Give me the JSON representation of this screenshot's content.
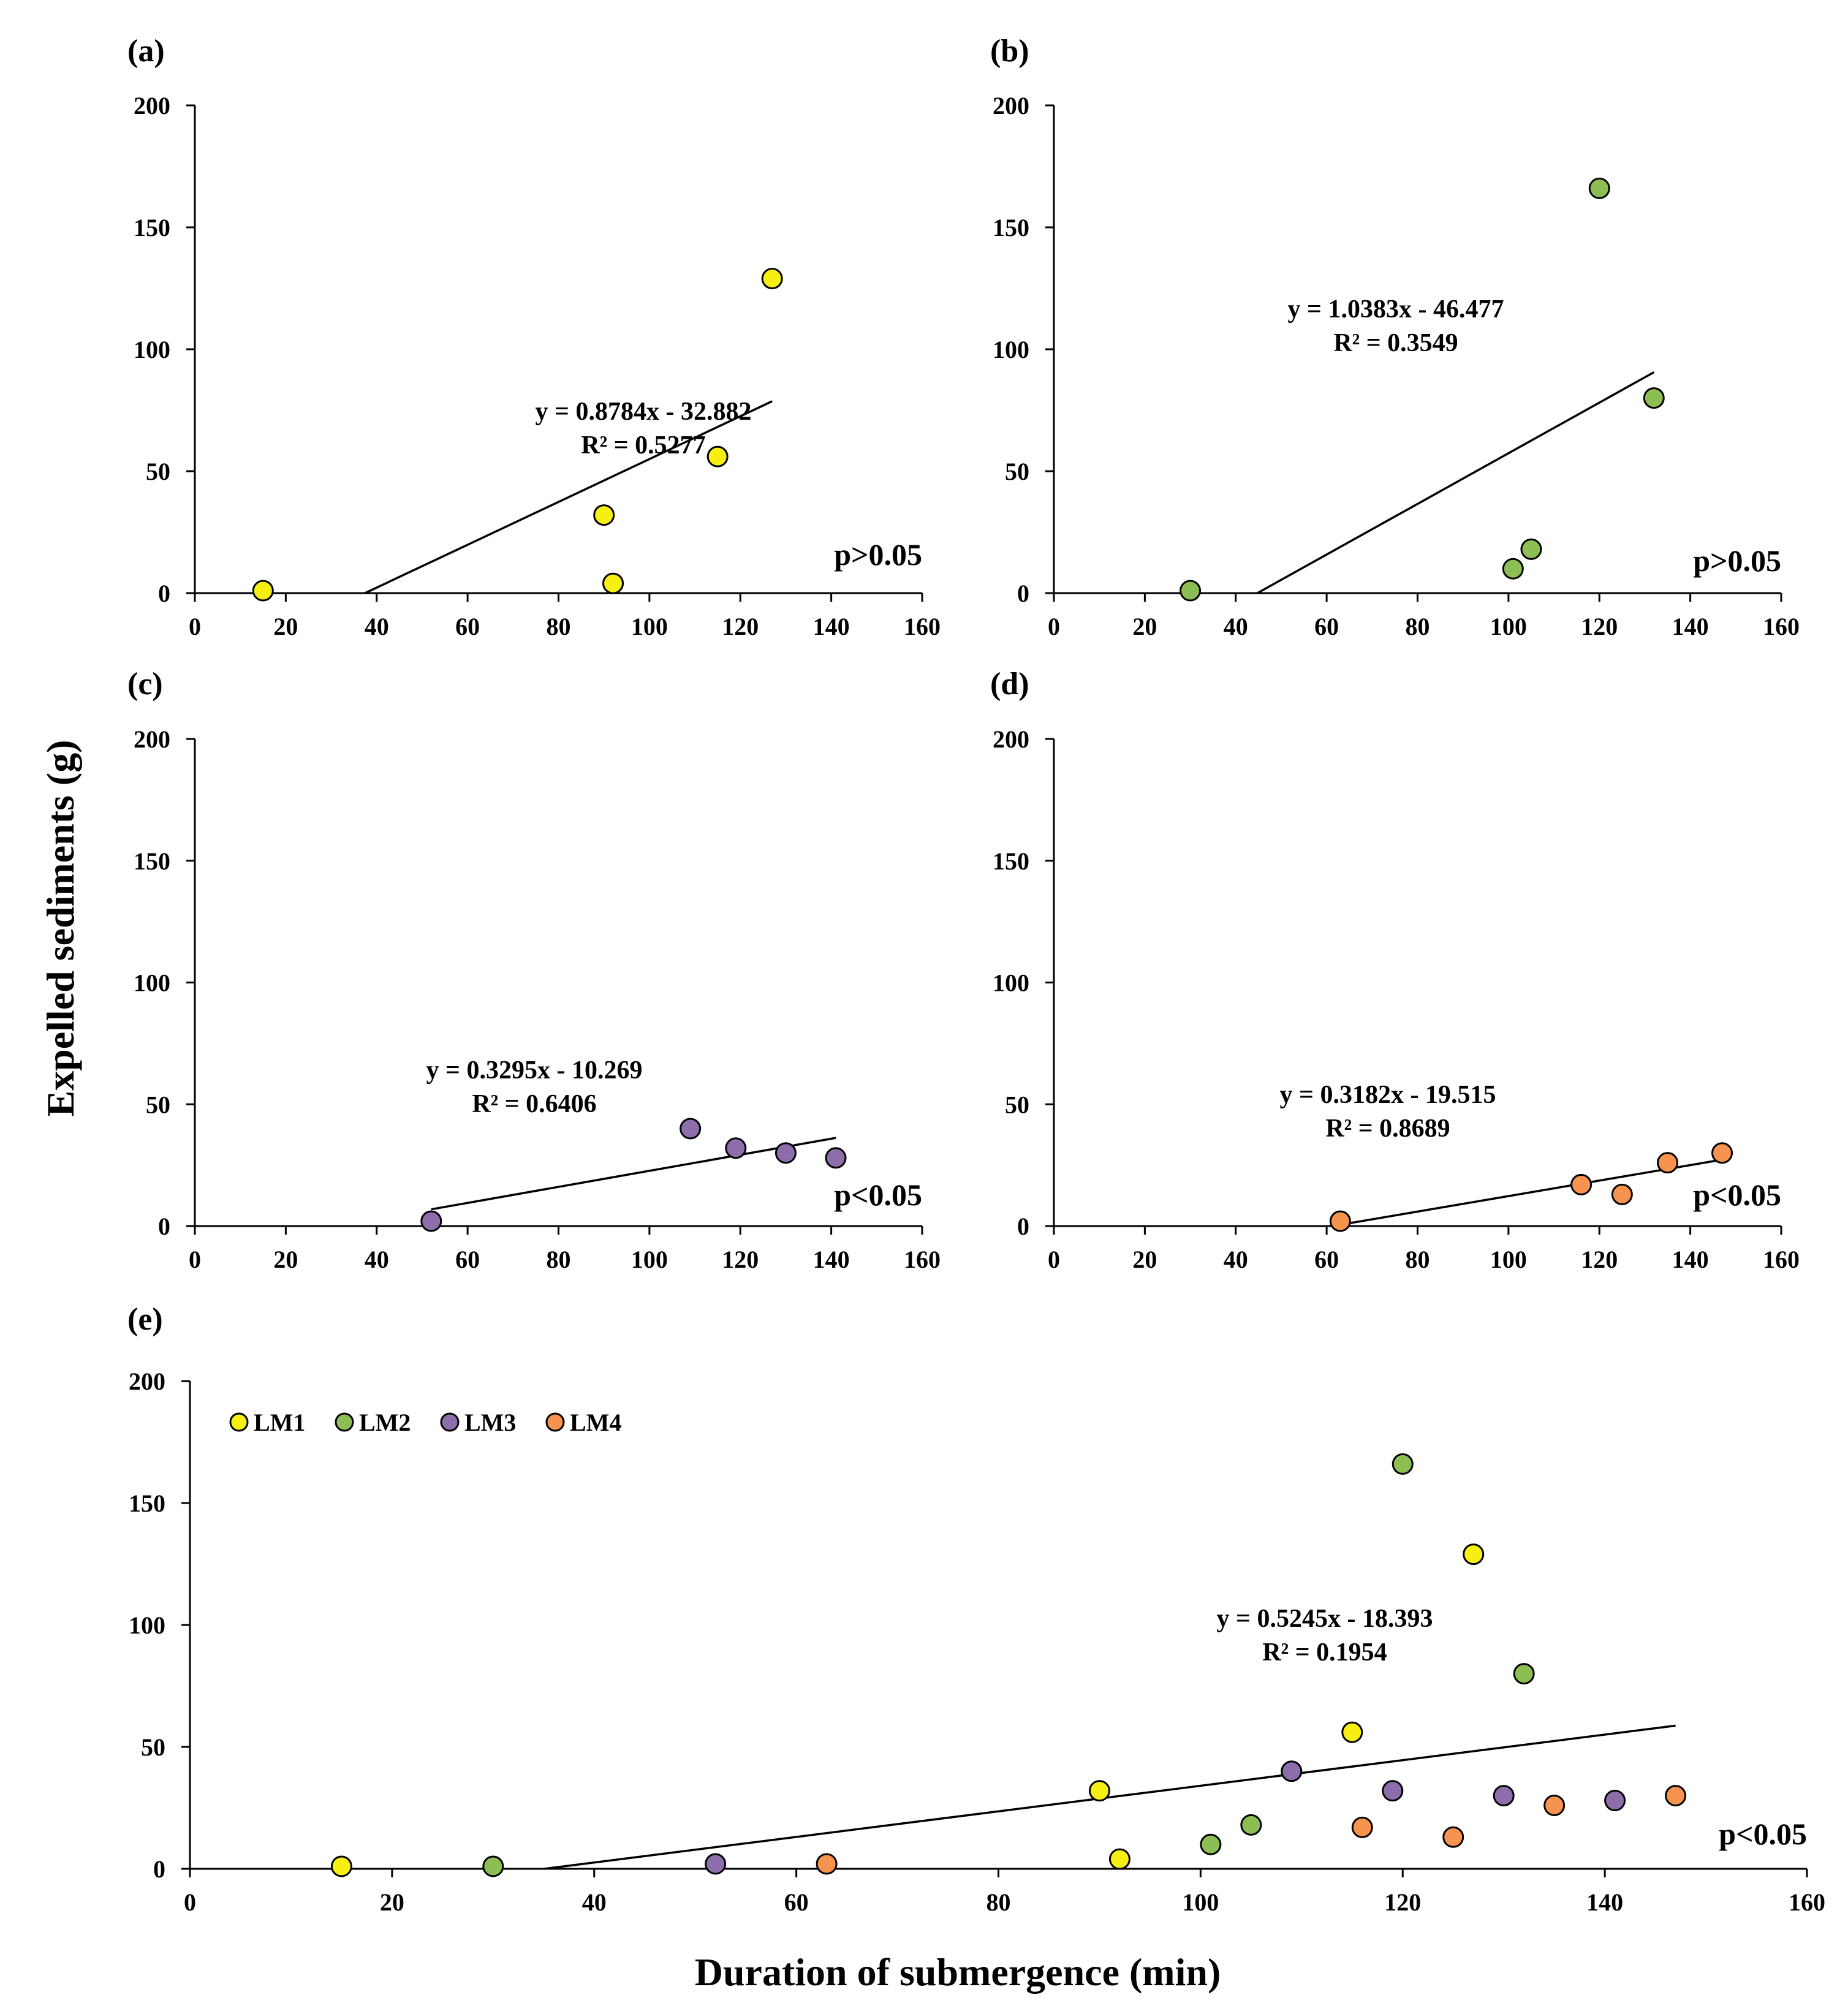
{
  "colors": {
    "LM1": "#f7ef12",
    "LM2": "#8dbe53",
    "LM3": "#8d6eab",
    "LM4": "#f5934f"
  },
  "chart_data": {
    "type": "scatter",
    "ylabel": "Expelled sediments (g)",
    "xlabel": "Duration of submergence (min)",
    "panels": [
      {
        "id": "a",
        "label": "(a)",
        "series": "LM1",
        "xlim": [
          0,
          160
        ],
        "ylim": [
          0,
          200
        ],
        "xticks": [
          0,
          20,
          40,
          60,
          80,
          100,
          120,
          140,
          160
        ],
        "yticks": [
          0,
          50,
          100,
          150,
          200
        ],
        "points": [
          [
            15,
            1
          ],
          [
            90,
            32
          ],
          [
            92,
            4
          ],
          [
            115,
            56
          ],
          [
            127,
            129
          ]
        ],
        "trendline": {
          "slope": 0.8784,
          "intercept": -32.882,
          "x_end": 127
        },
        "equation": "y = 0.8784x - 32.882",
        "r2": "R² = 0.5277",
        "p_value": "p>0.05"
      },
      {
        "id": "b",
        "label": "(b)",
        "series": "LM2",
        "xlim": [
          0,
          160
        ],
        "ylim": [
          0,
          200
        ],
        "xticks": [
          0,
          20,
          40,
          60,
          80,
          100,
          120,
          140,
          160
        ],
        "yticks": [
          0,
          50,
          100,
          150,
          200
        ],
        "points": [
          [
            30,
            1
          ],
          [
            101,
            10
          ],
          [
            105,
            18
          ],
          [
            120,
            166
          ],
          [
            132,
            80
          ]
        ],
        "trendline": {
          "slope": 1.0383,
          "intercept": -46.477,
          "x_end": 132
        },
        "equation": "y = 1.0383x - 46.477",
        "r2": "R² = 0.3549",
        "p_value": "p>0.05"
      },
      {
        "id": "c",
        "label": "(c)",
        "series": "LM3",
        "xlim": [
          0,
          160
        ],
        "ylim": [
          0,
          200
        ],
        "xticks": [
          0,
          20,
          40,
          60,
          80,
          100,
          120,
          140,
          160
        ],
        "yticks": [
          0,
          50,
          100,
          150,
          200
        ],
        "points": [
          [
            52,
            2
          ],
          [
            109,
            40
          ],
          [
            119,
            32
          ],
          [
            130,
            30
          ],
          [
            141,
            28
          ]
        ],
        "trendline": {
          "slope": 0.3295,
          "intercept": -10.269,
          "x_start": 52,
          "x_end": 141
        },
        "equation": "y = 0.3295x - 10.269",
        "r2": "R² = 0.6406",
        "p_value": "p<0.05"
      },
      {
        "id": "d",
        "label": "(d)",
        "series": "LM4",
        "xlim": [
          0,
          160
        ],
        "ylim": [
          0,
          200
        ],
        "xticks": [
          0,
          20,
          40,
          60,
          80,
          100,
          120,
          140,
          160
        ],
        "yticks": [
          0,
          50,
          100,
          150,
          200
        ],
        "points": [
          [
            63,
            2
          ],
          [
            116,
            17
          ],
          [
            125,
            13
          ],
          [
            135,
            26
          ],
          [
            147,
            30
          ]
        ],
        "trendline": {
          "slope": 0.3182,
          "intercept": -19.515,
          "x_start": 63,
          "x_end": 147
        },
        "equation": "y = 0.3182x - 19.515",
        "r2": "R² = 0.8689",
        "p_value": "p<0.05"
      },
      {
        "id": "e",
        "label": "(e)",
        "series": "all",
        "xlim": [
          0,
          160
        ],
        "ylim": [
          0,
          200
        ],
        "xticks": [
          0,
          20,
          40,
          60,
          80,
          100,
          120,
          140,
          160
        ],
        "yticks": [
          0,
          50,
          100,
          150,
          200
        ],
        "points_by_series": {
          "LM1": [
            [
              15,
              1
            ],
            [
              90,
              32
            ],
            [
              92,
              4
            ],
            [
              115,
              56
            ],
            [
              127,
              129
            ]
          ],
          "LM2": [
            [
              30,
              1
            ],
            [
              101,
              10
            ],
            [
              105,
              18
            ],
            [
              120,
              166
            ],
            [
              132,
              80
            ]
          ],
          "LM3": [
            [
              52,
              2
            ],
            [
              109,
              40
            ],
            [
              119,
              32
            ],
            [
              130,
              30
            ],
            [
              141,
              28
            ]
          ],
          "LM4": [
            [
              63,
              2
            ],
            [
              116,
              17
            ],
            [
              125,
              13
            ],
            [
              135,
              26
            ],
            [
              147,
              30
            ]
          ]
        },
        "trendline": {
          "slope": 0.5245,
          "intercept": -18.393,
          "x_end": 147
        },
        "equation": "y = 0.5245x - 18.393",
        "r2": "R² = 0.1954",
        "p_value": "p<0.05",
        "legend": [
          "LM1",
          "LM2",
          "LM3",
          "LM4"
        ]
      }
    ]
  }
}
